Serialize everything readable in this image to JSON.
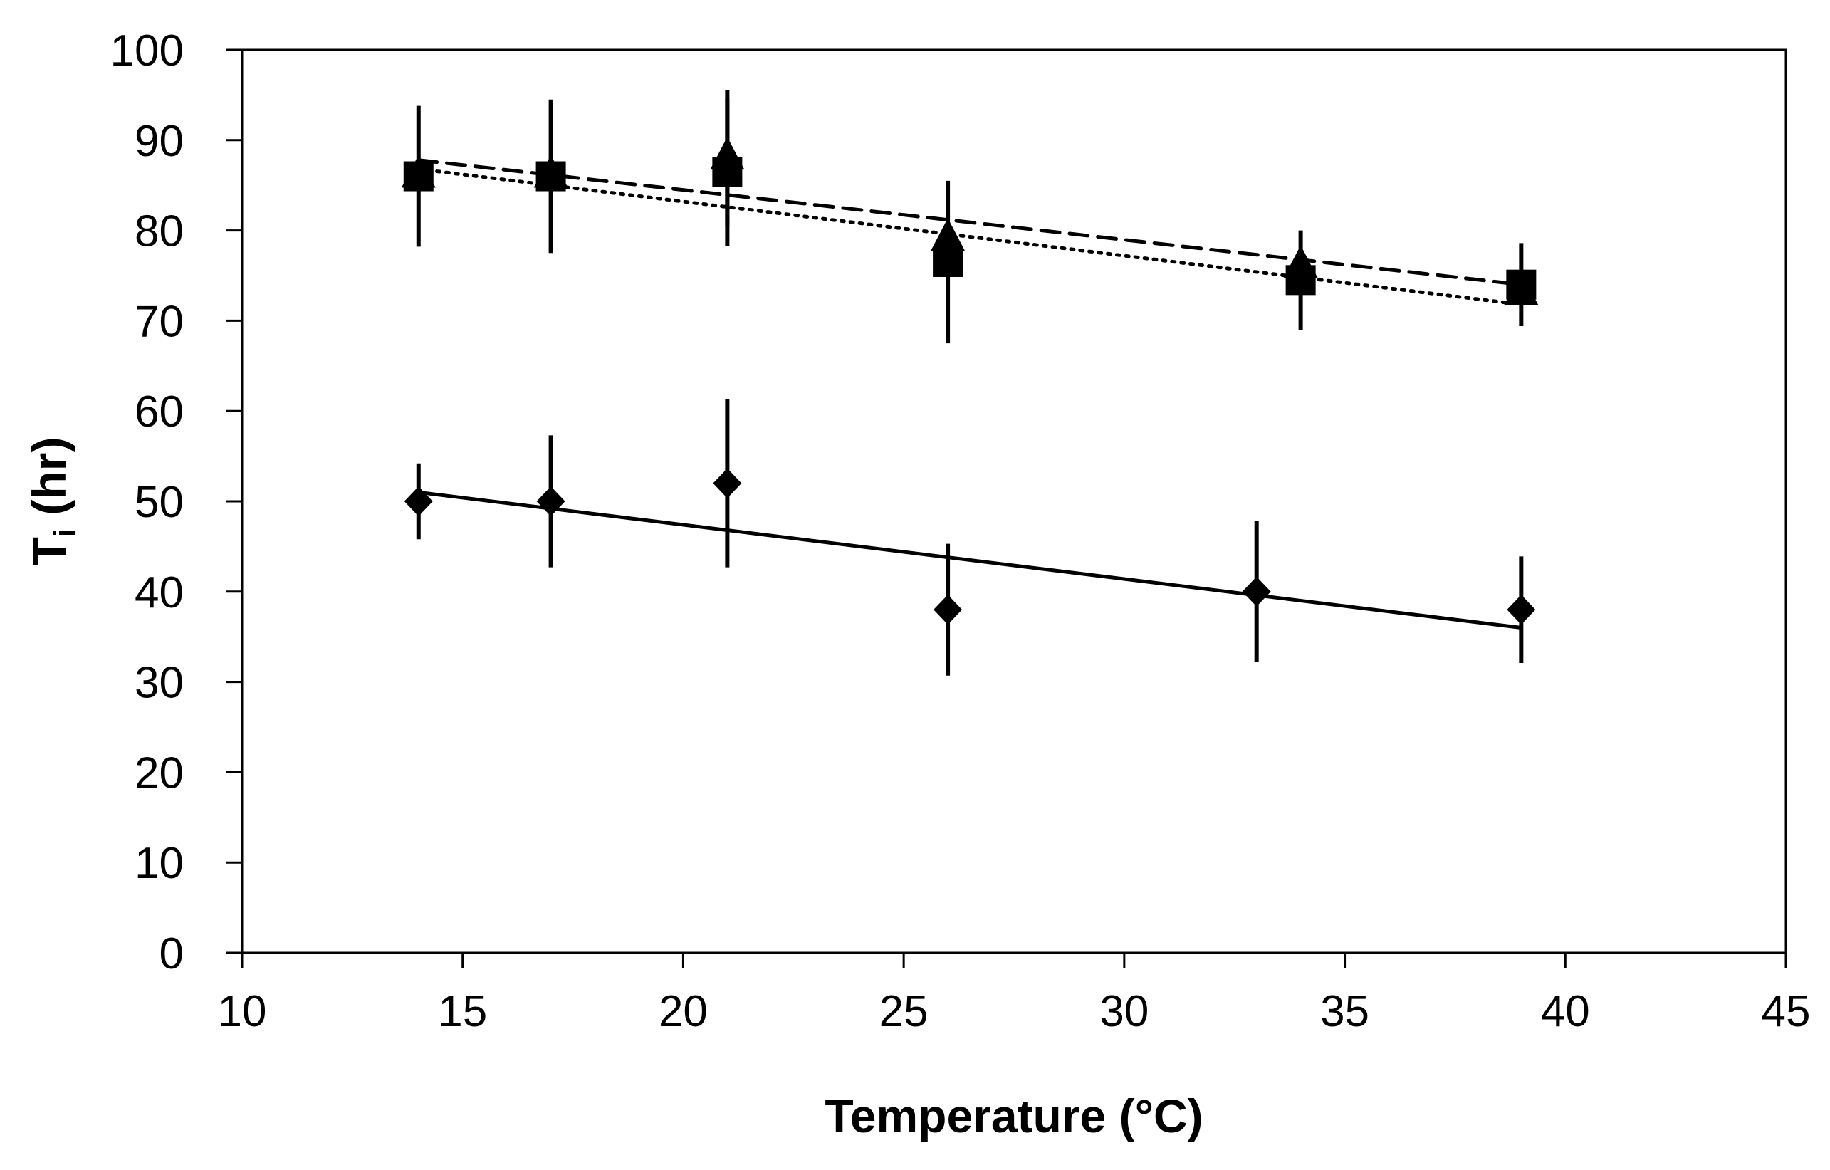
{
  "chart_data": {
    "type": "scatter",
    "title": "",
    "xlabel": "Temperature (°C)",
    "ylabel_main": "T",
    "ylabel_sub": "i",
    "ylabel_rest": " (hr)",
    "xlim": [
      10,
      45
    ],
    "ylim": [
      0,
      100
    ],
    "xticks": [
      10,
      15,
      20,
      25,
      30,
      35,
      40,
      45
    ],
    "yticks": [
      0,
      10,
      20,
      30,
      40,
      50,
      60,
      70,
      80,
      90,
      100
    ],
    "grid": false,
    "legend": "none",
    "series": [
      {
        "name": "diamond",
        "marker": "diamond",
        "trendline": "solid",
        "trend": [
          [
            14,
            51
          ],
          [
            39,
            36
          ]
        ],
        "points": [
          {
            "x": 14,
            "y": 50,
            "err": 4.2
          },
          {
            "x": 17,
            "y": 50,
            "err": 7.3
          },
          {
            "x": 21,
            "y": 52,
            "err": 9.3
          },
          {
            "x": 26,
            "y": 38,
            "err": 7.3
          },
          {
            "x": 33,
            "y": 40,
            "err": 7.8
          },
          {
            "x": 39,
            "y": 38,
            "err": 5.9
          }
        ]
      },
      {
        "name": "square",
        "marker": "square",
        "trendline": "dotted",
        "trend": [
          [
            14,
            86.8
          ],
          [
            39,
            71.8
          ]
        ],
        "points": [
          {
            "x": 14,
            "y": 86,
            "err": 7.8
          },
          {
            "x": 17,
            "y": 86,
            "err": 8.5
          },
          {
            "x": 21,
            "y": 86.5,
            "err": 8.2
          },
          {
            "x": 26,
            "y": 76.5,
            "err": 9.0
          },
          {
            "x": 34,
            "y": 74.5,
            "err": 5.5
          },
          {
            "x": 39,
            "y": 74,
            "err": 4.6
          }
        ]
      },
      {
        "name": "triangle",
        "marker": "triangle",
        "trendline": "dashed",
        "trend": [
          [
            14,
            87.8
          ],
          [
            39,
            74
          ]
        ],
        "points": [
          {
            "x": 14,
            "y": 86,
            "err": 0
          },
          {
            "x": 17,
            "y": 86,
            "err": 0
          },
          {
            "x": 21,
            "y": 88,
            "err": 7.5
          },
          {
            "x": 26,
            "y": 79,
            "err": 0
          },
          {
            "x": 34,
            "y": 76,
            "err": 0
          },
          {
            "x": 39,
            "y": 73,
            "err": 0
          }
        ]
      }
    ]
  }
}
